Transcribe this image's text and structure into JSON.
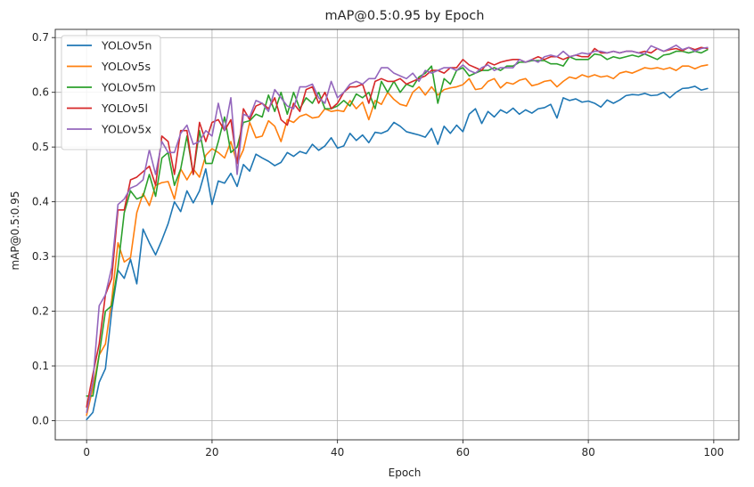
{
  "chart_data": {
    "type": "line",
    "title": "mAP@0.5:0.95 by Epoch",
    "xlabel": "Epoch",
    "ylabel": "mAP@0.5:0.95",
    "xlim": [
      -5,
      104
    ],
    "ylim": [
      -0.035,
      0.715
    ],
    "xticks": [
      0,
      20,
      40,
      60,
      80,
      100
    ],
    "yticks": [
      0.0,
      0.1,
      0.2,
      0.3,
      0.4,
      0.5,
      0.6,
      0.7
    ],
    "xtick_labels": [
      "0",
      "20",
      "40",
      "60",
      "80",
      "100"
    ],
    "ytick_labels": [
      "0.0",
      "0.1",
      "0.2",
      "0.3",
      "0.4",
      "0.5",
      "0.6",
      "0.7"
    ],
    "grid": true,
    "legend_position": "top-left",
    "x": [
      0,
      1,
      2,
      3,
      4,
      5,
      6,
      7,
      8,
      9,
      10,
      11,
      12,
      13,
      14,
      15,
      16,
      17,
      18,
      19,
      20,
      21,
      22,
      23,
      24,
      25,
      26,
      27,
      28,
      29,
      30,
      31,
      32,
      33,
      34,
      35,
      36,
      37,
      38,
      39,
      40,
      41,
      42,
      43,
      44,
      45,
      46,
      47,
      48,
      49,
      50,
      51,
      52,
      53,
      54,
      55,
      56,
      57,
      58,
      59,
      60,
      61,
      62,
      63,
      64,
      65,
      66,
      67,
      68,
      69,
      70,
      71,
      72,
      73,
      74,
      75,
      76,
      77,
      78,
      79,
      80,
      81,
      82,
      83,
      84,
      85,
      86,
      87,
      88,
      89,
      90,
      91,
      92,
      93,
      94,
      95,
      96,
      97,
      98,
      99
    ],
    "series": [
      {
        "name": "YOLOv5n",
        "color": "#1f77b4",
        "values": [
          0.002,
          0.015,
          0.07,
          0.095,
          0.2,
          0.275,
          0.26,
          0.295,
          0.25,
          0.35,
          0.325,
          0.303,
          0.33,
          0.36,
          0.4,
          0.382,
          0.42,
          0.398,
          0.42,
          0.46,
          0.395,
          0.438,
          0.434,
          0.452,
          0.428,
          0.468,
          0.456,
          0.487,
          0.48,
          0.474,
          0.466,
          0.472,
          0.49,
          0.483,
          0.492,
          0.488,
          0.505,
          0.494,
          0.502,
          0.517,
          0.498,
          0.502,
          0.525,
          0.512,
          0.522,
          0.508,
          0.527,
          0.525,
          0.53,
          0.545,
          0.538,
          0.528,
          0.525,
          0.522,
          0.518,
          0.534,
          0.505,
          0.538,
          0.525,
          0.54,
          0.528,
          0.56,
          0.57,
          0.543,
          0.565,
          0.555,
          0.568,
          0.562,
          0.571,
          0.56,
          0.568,
          0.562,
          0.57,
          0.572,
          0.578,
          0.553,
          0.59,
          0.585,
          0.588,
          0.582,
          0.584,
          0.58,
          0.573,
          0.586,
          0.58,
          0.586,
          0.594,
          0.596,
          0.595,
          0.598,
          0.594,
          0.595,
          0.6,
          0.59,
          0.6,
          0.607,
          0.608,
          0.611,
          0.604,
          0.607
        ]
      },
      {
        "name": "YOLOv5s",
        "color": "#ff7f0e",
        "values": [
          0.01,
          0.06,
          0.12,
          0.14,
          0.22,
          0.325,
          0.29,
          0.298,
          0.38,
          0.415,
          0.393,
          0.43,
          0.435,
          0.437,
          0.405,
          0.46,
          0.44,
          0.46,
          0.445,
          0.485,
          0.497,
          0.49,
          0.48,
          0.51,
          0.47,
          0.495,
          0.545,
          0.517,
          0.52,
          0.548,
          0.538,
          0.51,
          0.55,
          0.545,
          0.556,
          0.56,
          0.553,
          0.555,
          0.57,
          0.565,
          0.567,
          0.565,
          0.585,
          0.57,
          0.582,
          0.55,
          0.585,
          0.578,
          0.6,
          0.587,
          0.578,
          0.575,
          0.6,
          0.61,
          0.595,
          0.61,
          0.595,
          0.605,
          0.608,
          0.61,
          0.614,
          0.625,
          0.605,
          0.607,
          0.62,
          0.625,
          0.608,
          0.618,
          0.615,
          0.622,
          0.625,
          0.612,
          0.615,
          0.62,
          0.622,
          0.61,
          0.62,
          0.628,
          0.625,
          0.632,
          0.628,
          0.632,
          0.628,
          0.63,
          0.625,
          0.635,
          0.638,
          0.635,
          0.64,
          0.645,
          0.643,
          0.645,
          0.642,
          0.645,
          0.64,
          0.648,
          0.648,
          0.643,
          0.648,
          0.65
        ]
      },
      {
        "name": "YOLOv5m",
        "color": "#2ca02c",
        "values": [
          0.045,
          0.045,
          0.12,
          0.2,
          0.21,
          0.28,
          0.38,
          0.42,
          0.405,
          0.41,
          0.45,
          0.41,
          0.48,
          0.49,
          0.43,
          0.46,
          0.52,
          0.45,
          0.53,
          0.47,
          0.47,
          0.51,
          0.555,
          0.49,
          0.5,
          0.545,
          0.548,
          0.56,
          0.555,
          0.595,
          0.565,
          0.6,
          0.56,
          0.6,
          0.57,
          0.59,
          0.58,
          0.6,
          0.57,
          0.57,
          0.575,
          0.585,
          0.575,
          0.597,
          0.59,
          0.6,
          0.57,
          0.62,
          0.6,
          0.62,
          0.6,
          0.615,
          0.61,
          0.628,
          0.635,
          0.648,
          0.58,
          0.625,
          0.615,
          0.64,
          0.645,
          0.63,
          0.635,
          0.64,
          0.64,
          0.645,
          0.64,
          0.648,
          0.648,
          0.655,
          0.655,
          0.658,
          0.658,
          0.658,
          0.652,
          0.652,
          0.648,
          0.665,
          0.66,
          0.66,
          0.66,
          0.67,
          0.668,
          0.66,
          0.665,
          0.662,
          0.665,
          0.668,
          0.665,
          0.67,
          0.665,
          0.66,
          0.668,
          0.67,
          0.675,
          0.675,
          0.672,
          0.675,
          0.672,
          0.678
        ]
      },
      {
        "name": "YOLOv5l",
        "color": "#d62728",
        "values": [
          0.025,
          0.085,
          0.14,
          0.23,
          0.26,
          0.385,
          0.385,
          0.44,
          0.445,
          0.455,
          0.465,
          0.43,
          0.52,
          0.51,
          0.45,
          0.53,
          0.53,
          0.45,
          0.545,
          0.51,
          0.545,
          0.55,
          0.53,
          0.55,
          0.47,
          0.57,
          0.55,
          0.575,
          0.58,
          0.57,
          0.59,
          0.55,
          0.54,
          0.58,
          0.565,
          0.605,
          0.61,
          0.58,
          0.6,
          0.57,
          0.58,
          0.6,
          0.61,
          0.61,
          0.615,
          0.58,
          0.62,
          0.625,
          0.62,
          0.62,
          0.625,
          0.615,
          0.62,
          0.625,
          0.63,
          0.64,
          0.64,
          0.635,
          0.645,
          0.645,
          0.66,
          0.65,
          0.645,
          0.64,
          0.655,
          0.65,
          0.655,
          0.658,
          0.66,
          0.66,
          0.655,
          0.66,
          0.665,
          0.66,
          0.665,
          0.665,
          0.66,
          0.665,
          0.668,
          0.665,
          0.665,
          0.68,
          0.672,
          0.672,
          0.675,
          0.672,
          0.675,
          0.675,
          0.672,
          0.675,
          0.672,
          0.68,
          0.675,
          0.678,
          0.68,
          0.676,
          0.682,
          0.678,
          0.682,
          0.68
        ]
      },
      {
        "name": "YOLOv5x",
        "color": "#9467bd",
        "values": [
          0.015,
          0.07,
          0.21,
          0.23,
          0.28,
          0.395,
          0.405,
          0.425,
          0.43,
          0.44,
          0.495,
          0.45,
          0.51,
          0.49,
          0.49,
          0.525,
          0.54,
          0.505,
          0.51,
          0.53,
          0.52,
          0.58,
          0.53,
          0.59,
          0.45,
          0.56,
          0.555,
          0.585,
          0.58,
          0.565,
          0.605,
          0.59,
          0.575,
          0.57,
          0.61,
          0.61,
          0.615,
          0.59,
          0.58,
          0.62,
          0.59,
          0.6,
          0.615,
          0.62,
          0.615,
          0.625,
          0.625,
          0.645,
          0.645,
          0.635,
          0.63,
          0.625,
          0.635,
          0.62,
          0.64,
          0.635,
          0.64,
          0.645,
          0.645,
          0.64,
          0.65,
          0.64,
          0.635,
          0.645,
          0.65,
          0.64,
          0.645,
          0.645,
          0.645,
          0.66,
          0.655,
          0.66,
          0.655,
          0.665,
          0.668,
          0.665,
          0.675,
          0.665,
          0.668,
          0.672,
          0.67,
          0.675,
          0.675,
          0.672,
          0.675,
          0.672,
          0.675,
          0.675,
          0.672,
          0.67,
          0.685,
          0.68,
          0.675,
          0.68,
          0.686,
          0.678,
          0.682,
          0.675,
          0.68,
          0.682
        ]
      }
    ]
  }
}
